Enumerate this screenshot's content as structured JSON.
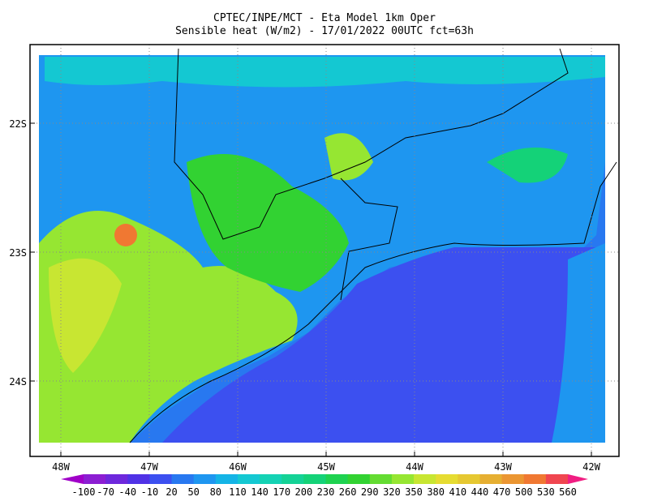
{
  "header": {
    "title": "CPTEC/INPE/MCT -  Eta Model 1km Oper",
    "subtitle": "Sensible heat (W/m2) - 17/01/2022 00UTC fct=63h"
  },
  "map": {
    "lat_labels": [
      "22S",
      "23S",
      "24S"
    ],
    "lon_labels": [
      "48W",
      "47W",
      "46W",
      "45W",
      "44W",
      "43W",
      "42W"
    ]
  },
  "colorbar": {
    "labels": [
      "-100",
      "-70",
      "-40",
      "-10",
      "20",
      "50",
      "80",
      "110",
      "140",
      "170",
      "200",
      "230",
      "260",
      "290",
      "320",
      "350",
      "380",
      "410",
      "440",
      "470",
      "500",
      "530",
      "560"
    ],
    "colors": [
      "#a000c8",
      "#8c1ed2",
      "#6e28dc",
      "#5032e6",
      "#3c50f0",
      "#2878f0",
      "#1e96f0",
      "#14b4e6",
      "#14c8d2",
      "#14d2b4",
      "#14d296",
      "#14d278",
      "#1ed250",
      "#32d232",
      "#64dc32",
      "#96e632",
      "#c8e632",
      "#e6dc32",
      "#e6c832",
      "#e6af32",
      "#eb9632",
      "#f07832",
      "#f04650",
      "#f01e82"
    ]
  }
}
